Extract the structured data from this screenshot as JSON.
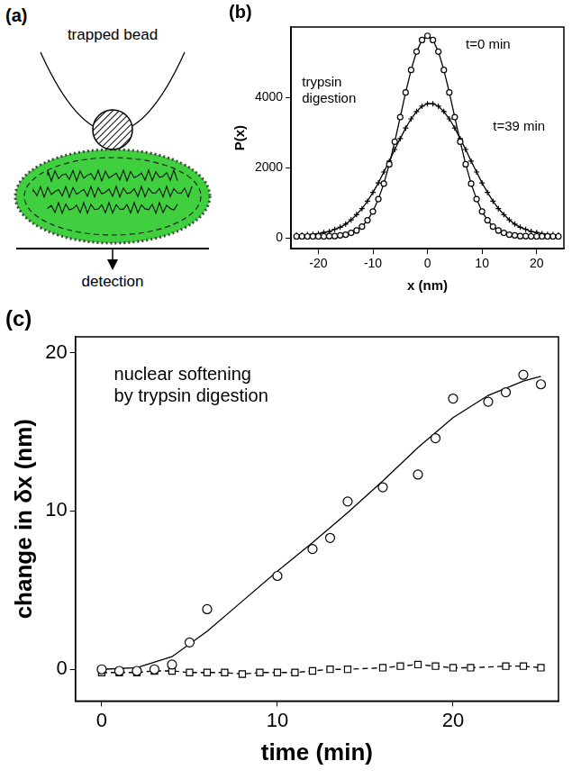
{
  "diagram": {
    "label": "(a)",
    "bead": "trapped bead",
    "detection": "detection"
  },
  "chart_data": [
    {
      "label": "(b)",
      "type": "line",
      "x_label": "x (nm)",
      "y_label": "P(x)",
      "annotations": [
        [
          "trypsin",
          "digestion"
        ],
        [
          "t=0 min"
        ],
        [
          "t=39 min"
        ]
      ],
      "x": [
        -24,
        -23,
        -22,
        -21,
        -20,
        -19,
        -18,
        -17,
        -16,
        -15,
        -14,
        -13,
        -12,
        -11,
        -10,
        -9,
        -8,
        -7,
        -6,
        -5,
        -4,
        -3,
        -2,
        -1,
        0,
        1,
        2,
        3,
        4,
        5,
        6,
        7,
        8,
        9,
        10,
        11,
        12,
        13,
        14,
        15,
        16,
        17,
        18,
        19,
        20,
        21,
        22,
        23,
        24
      ],
      "series": [
        {
          "color": "#000000",
          "marker": "circle",
          "line_style": "solid",
          "values": [
            50,
            50,
            50,
            50,
            50,
            50,
            60,
            60,
            80,
            100,
            150,
            220,
            330,
            510,
            760,
            1110,
            1550,
            2100,
            2740,
            3440,
            4140,
            4780,
            5300,
            5630,
            5750,
            5630,
            5300,
            4780,
            4140,
            3440,
            2740,
            2100,
            1550,
            1110,
            760,
            510,
            330,
            220,
            150,
            100,
            80,
            60,
            60,
            50,
            50,
            50,
            50,
            50,
            50
          ]
        },
        {
          "color": "#000000",
          "marker": "cross",
          "line_style": "solid",
          "values": [
            90,
            90,
            100,
            110,
            130,
            160,
            190,
            250,
            310,
            400,
            520,
            670,
            840,
            1050,
            1300,
            1570,
            1880,
            2190,
            2520,
            2830,
            3130,
            3390,
            3600,
            3750,
            3820,
            3820,
            3750,
            3600,
            3390,
            3130,
            2830,
            2520,
            2190,
            1880,
            1570,
            1300,
            1050,
            840,
            670,
            520,
            400,
            310,
            250,
            190,
            160,
            130,
            110,
            100,
            90
          ]
        }
      ],
      "xlim": [
        -25,
        25
      ],
      "xticks": [
        -20,
        -10,
        0,
        10,
        20
      ],
      "ylim": [
        -300,
        6000
      ],
      "yticks": [
        0,
        2000,
        4000
      ],
      "grid": false
    },
    {
      "label": "(c)",
      "type": "scatter",
      "x_label": "time (min)",
      "y_label": "change in δx (nm)",
      "annotations": [
        [
          "nuclear softening",
          "by trypsin digestion"
        ]
      ],
      "series": [
        {
          "color": "#000000",
          "marker": "circle",
          "line_style": "none",
          "x": [
            0,
            1,
            2,
            3,
            4,
            5,
            6,
            10,
            12,
            13,
            14,
            16,
            18,
            19,
            20,
            22,
            23,
            24,
            25
          ],
          "values": [
            0,
            -0.1,
            -0.1,
            0,
            0.3,
            1.7,
            3.8,
            5.9,
            7.6,
            8.3,
            10.6,
            11.5,
            12.3,
            14.6,
            17.1,
            16.9,
            17.5,
            18.6,
            18.0
          ]
        },
        {
          "color": "#000000",
          "marker": "none",
          "line_style": "solid",
          "x": [
            0,
            2,
            4,
            6,
            8,
            10,
            12,
            14,
            16,
            18,
            20,
            22,
            24,
            25
          ],
          "values": [
            0,
            0.1,
            0.8,
            2.4,
            4.3,
            6.2,
            8.0,
            9.9,
            11.9,
            14.0,
            15.9,
            17.3,
            18.2,
            18.5
          ]
        },
        {
          "color": "#000000",
          "marker": "square",
          "line_style": "dashed",
          "x": [
            0,
            1,
            2,
            3,
            4,
            5,
            6,
            7,
            8,
            9,
            10,
            11,
            12,
            13,
            14,
            16,
            17,
            18,
            19,
            20,
            21,
            23,
            24,
            25
          ],
          "values": [
            -0.2,
            -0.2,
            -0.2,
            -0.1,
            -0.1,
            -0.2,
            -0.2,
            -0.2,
            -0.3,
            -0.2,
            -0.2,
            -0.2,
            -0.1,
            0,
            0,
            0.1,
            0.2,
            0.3,
            0.2,
            0.1,
            0.1,
            0.2,
            0.2,
            0.1
          ]
        }
      ],
      "xlim": [
        -1.5,
        26
      ],
      "xticks": [
        0,
        10,
        20
      ],
      "ylim": [
        -2,
        21
      ],
      "yticks": [
        0,
        10,
        20
      ],
      "grid": false
    }
  ]
}
